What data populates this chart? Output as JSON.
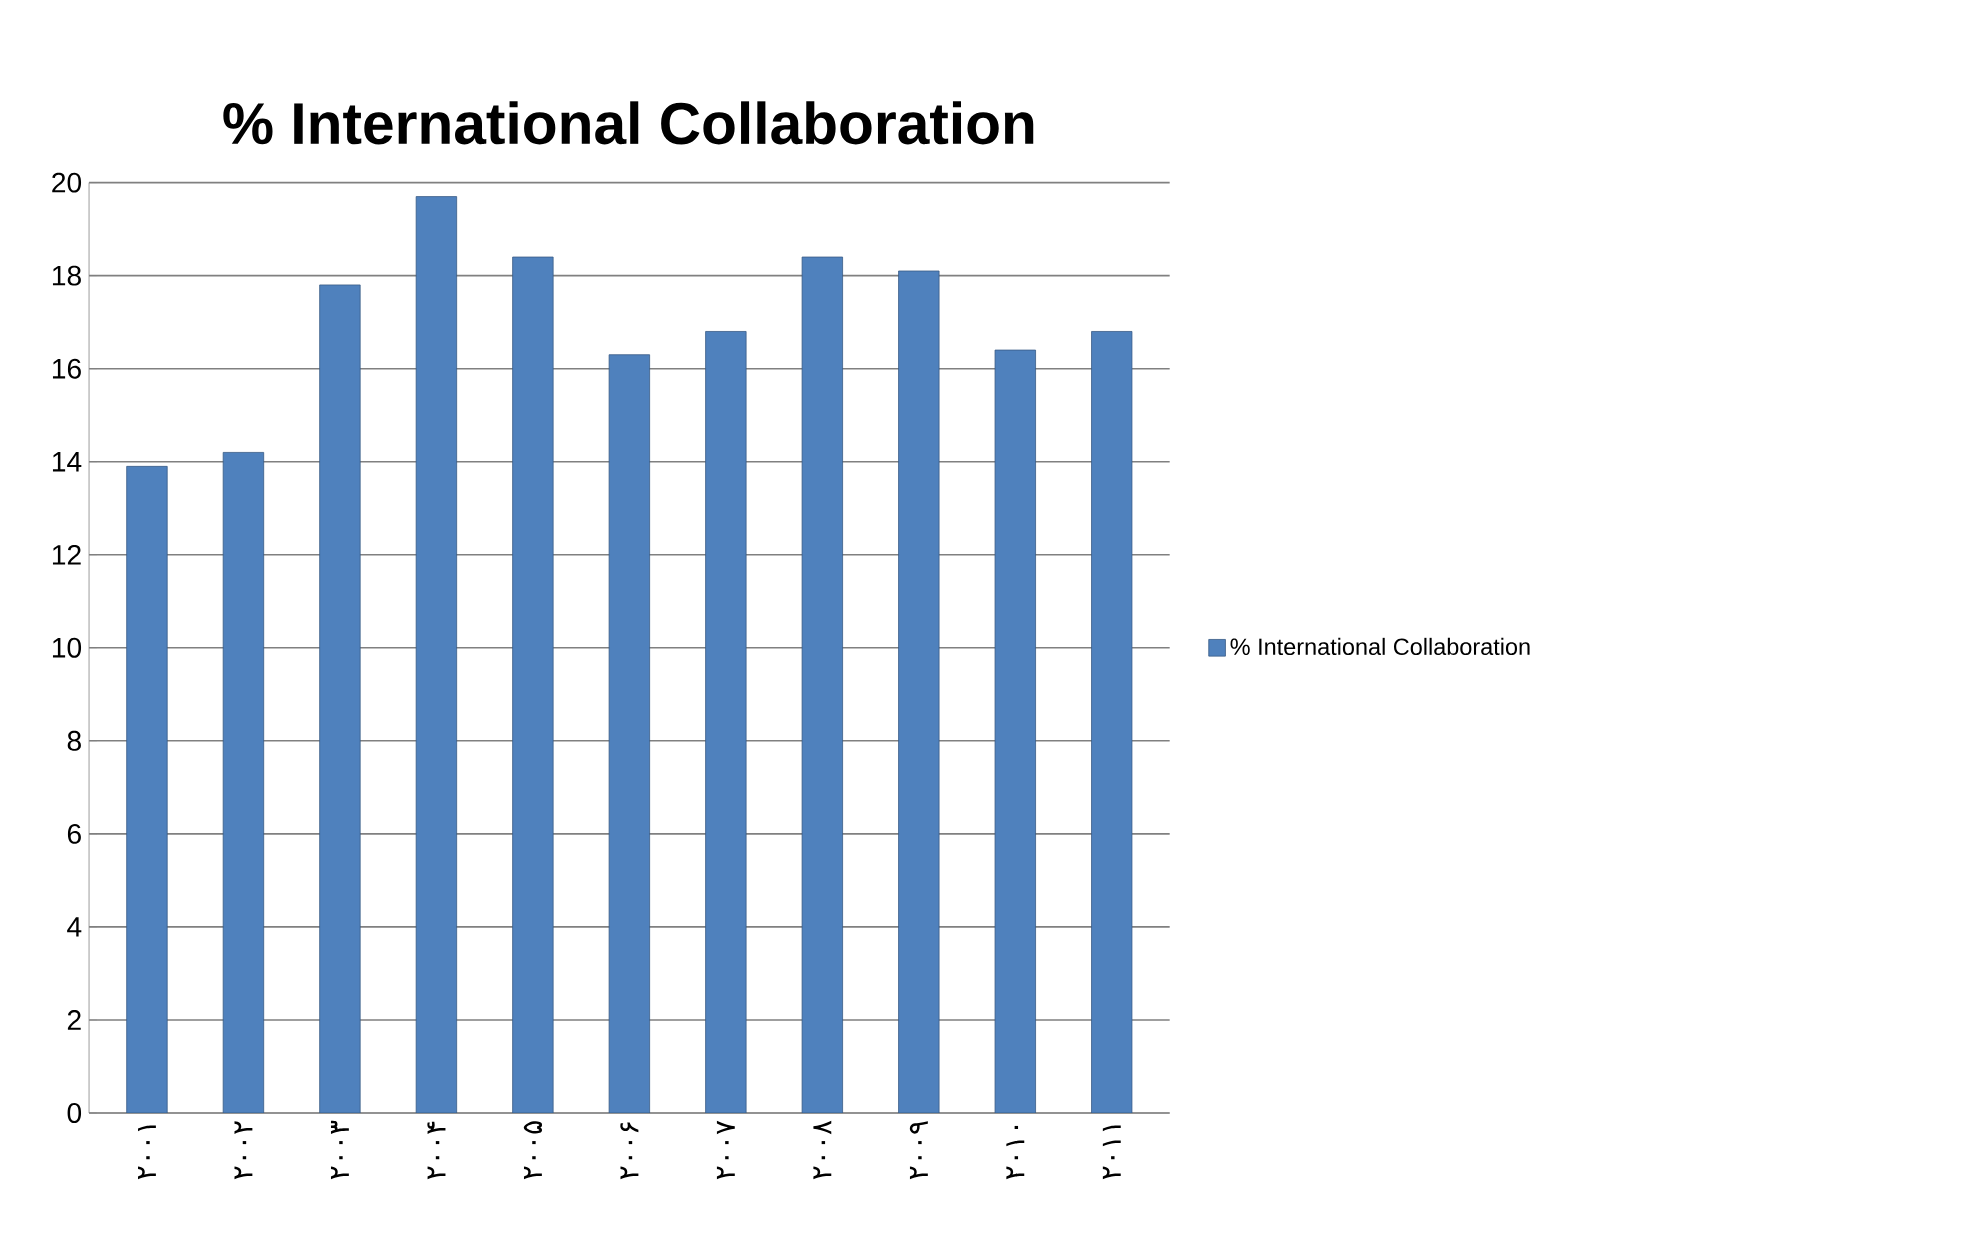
{
  "chart_data": {
    "type": "bar",
    "title": "% International Collaboration",
    "categories": [
      "۲۰۰۱",
      "۲۰۰۲",
      "۲۰۰۳",
      "۲۰۰۴",
      "۲۰۰۵",
      "۲۰۰۶",
      "۲۰۰۷",
      "۲۰۰۸",
      "۲۰۰۹",
      "۲۰۱۰",
      "۲۰۱۱"
    ],
    "series": [
      {
        "name": "% International Collaboration",
        "color": "#4f81bd",
        "values": [
          13.9,
          14.2,
          17.8,
          19.7,
          18.4,
          16.3,
          16.8,
          18.4,
          18.1,
          16.4,
          16.8
        ]
      }
    ],
    "ylim": [
      0,
      20
    ],
    "yticks": [
      0,
      2,
      4,
      6,
      8,
      10,
      12,
      14,
      16,
      18,
      20
    ],
    "grid": "y",
    "legend": "right"
  }
}
